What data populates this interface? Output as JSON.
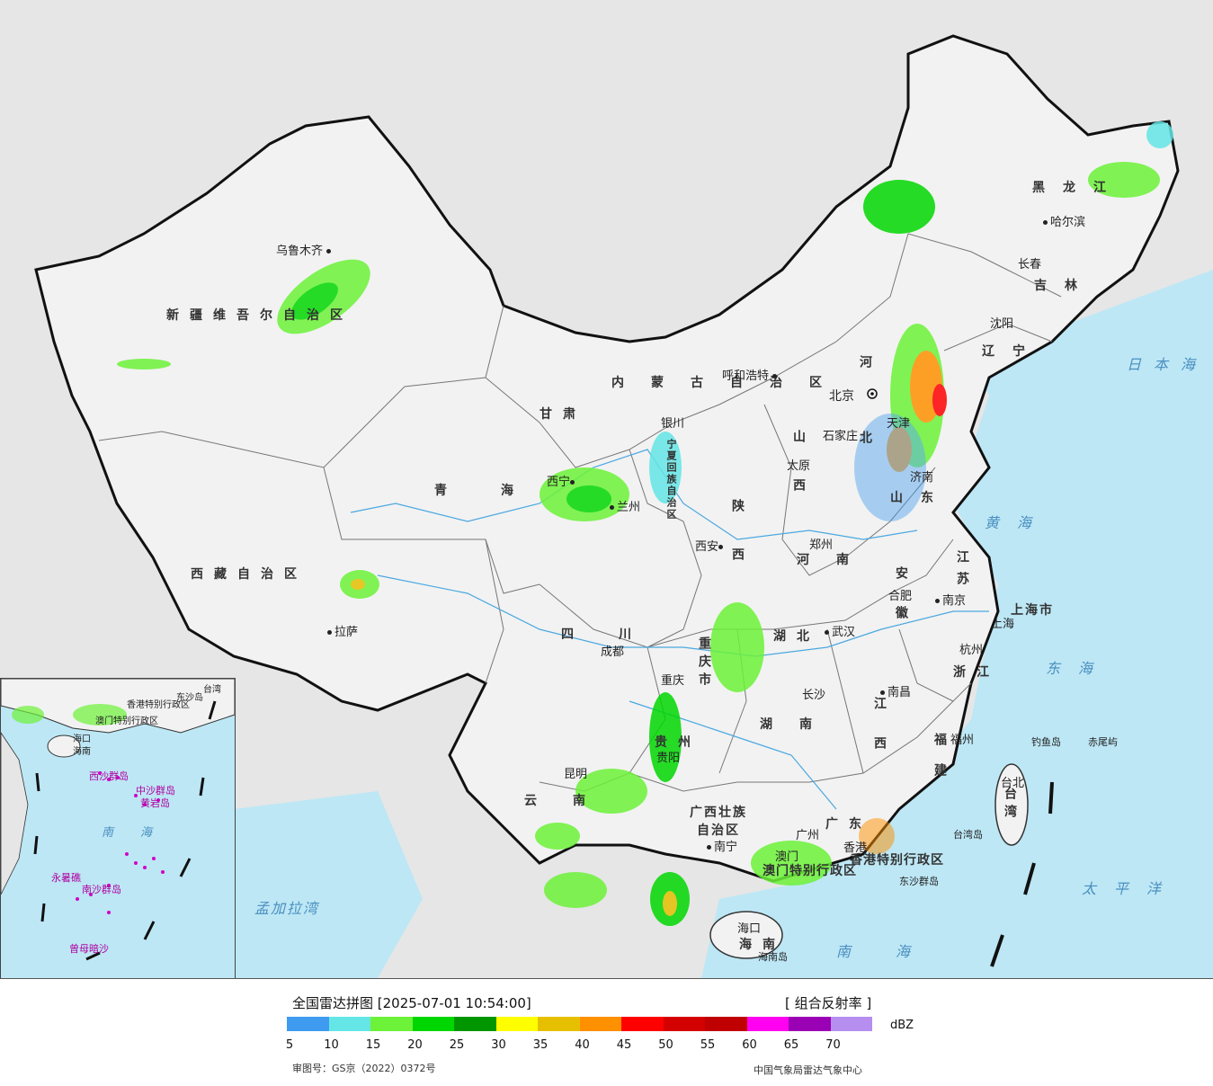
{
  "map": {
    "provinces": [
      {
        "id": "xinjiang",
        "label": "新疆维吾尔自治区"
      },
      {
        "id": "xizang",
        "label": "西藏自治区"
      },
      {
        "id": "qinghai",
        "label": "青海"
      },
      {
        "id": "gansu",
        "label": "甘肃"
      },
      {
        "id": "neimenggu",
        "label": "内蒙古自治区"
      },
      {
        "id": "ningxia",
        "label": "宁夏回族自治区"
      },
      {
        "id": "sichuan",
        "label": "四川"
      },
      {
        "id": "yunnan",
        "label": "云南"
      },
      {
        "id": "shaanxi",
        "label": "陕西"
      },
      {
        "id": "shanxi",
        "label": "山西"
      },
      {
        "id": "hebei",
        "label": "河北"
      },
      {
        "id": "henan",
        "label": "河南"
      },
      {
        "id": "hubei",
        "label": "湖北"
      },
      {
        "id": "hunan",
        "label": "湖南"
      },
      {
        "id": "guizhou",
        "label": "贵州"
      },
      {
        "id": "guangxi",
        "label": "广西壮族自治区"
      },
      {
        "id": "guangdong",
        "label": "广东"
      },
      {
        "id": "jiangxi",
        "label": "江西"
      },
      {
        "id": "fujian",
        "label": "福建"
      },
      {
        "id": "zhejiang",
        "label": "浙江"
      },
      {
        "id": "anhui",
        "label": "安徽"
      },
      {
        "id": "jiangsu",
        "label": "江苏"
      },
      {
        "id": "shandong",
        "label": "山东"
      },
      {
        "id": "liaoning",
        "label": "辽宁"
      },
      {
        "id": "jilin",
        "label": "吉林"
      },
      {
        "id": "heilongjiang",
        "label": "黑龙江"
      },
      {
        "id": "chongqing",
        "label": "重庆市"
      },
      {
        "id": "shanghai",
        "label": "上海市"
      },
      {
        "id": "hainan",
        "label": "海南"
      },
      {
        "id": "taiwan",
        "label": "台湾"
      },
      {
        "id": "hongkong",
        "label": "香港特别行政区"
      },
      {
        "id": "macau",
        "label": "澳门特别行政区"
      }
    ],
    "cities": [
      {
        "id": "urumqi",
        "label": "乌鲁木齐"
      },
      {
        "id": "lhasa",
        "label": "拉萨"
      },
      {
        "id": "xining",
        "label": "西宁"
      },
      {
        "id": "lanzhou",
        "label": "兰州"
      },
      {
        "id": "yinchuan",
        "label": "银川"
      },
      {
        "id": "hohhot",
        "label": "呼和浩特"
      },
      {
        "id": "beijing",
        "label": "北京"
      },
      {
        "id": "tianjin",
        "label": "天津"
      },
      {
        "id": "shijiazhuang",
        "label": "石家庄"
      },
      {
        "id": "taiyuan",
        "label": "太原"
      },
      {
        "id": "xian",
        "label": "西安"
      },
      {
        "id": "zhengzhou",
        "label": "郑州"
      },
      {
        "id": "jinan",
        "label": "济南"
      },
      {
        "id": "shenyang",
        "label": "沈阳"
      },
      {
        "id": "changchun",
        "label": "长春"
      },
      {
        "id": "harbin",
        "label": "哈尔滨"
      },
      {
        "id": "chengdu",
        "label": "成都"
      },
      {
        "id": "chongqing",
        "label": "重庆"
      },
      {
        "id": "wuhan",
        "label": "武汉"
      },
      {
        "id": "hefei",
        "label": "合肥"
      },
      {
        "id": "nanjing",
        "label": "南京"
      },
      {
        "id": "shanghai",
        "label": "上海"
      },
      {
        "id": "hangzhou",
        "label": "杭州"
      },
      {
        "id": "nanchang",
        "label": "南昌"
      },
      {
        "id": "changsha",
        "label": "长沙"
      },
      {
        "id": "guiyang",
        "label": "贵阳"
      },
      {
        "id": "kunming",
        "label": "昆明"
      },
      {
        "id": "nanning",
        "label": "南宁"
      },
      {
        "id": "guangzhou",
        "label": "广州"
      },
      {
        "id": "fuzhou",
        "label": "福州"
      },
      {
        "id": "taipei",
        "label": "台北"
      },
      {
        "id": "haikou",
        "label": "海口"
      },
      {
        "id": "hongkong",
        "label": "香港"
      },
      {
        "id": "macau",
        "label": "澳门"
      }
    ],
    "seas": [
      {
        "id": "riben-hai",
        "label": "日本海"
      },
      {
        "id": "huang-hai",
        "label": "黄海"
      },
      {
        "id": "dong-hai",
        "label": "东海"
      },
      {
        "id": "nan-hai",
        "label": "南海"
      },
      {
        "id": "taiping-yang",
        "label": "太平洋"
      },
      {
        "id": "mengjiala-wan",
        "label": "孟加拉湾"
      }
    ],
    "islands": [
      {
        "id": "diaoyu",
        "label": "钓鱼岛"
      },
      {
        "id": "chiwei",
        "label": "赤尾屿"
      },
      {
        "id": "taiwan-dao",
        "label": "台湾岛"
      },
      {
        "id": "hainan-dao",
        "label": "海南岛"
      },
      {
        "id": "dongsha",
        "label": "东沙群岛"
      }
    ],
    "inset": {
      "labels": [
        {
          "id": "nanhai",
          "label": "南海"
        },
        {
          "id": "xisha",
          "label": "西沙群岛"
        },
        {
          "id": "zhongsha",
          "label": "中沙群岛"
        },
        {
          "id": "huangyan",
          "label": "黄岩岛"
        },
        {
          "id": "nansha",
          "label": "南沙群岛"
        },
        {
          "id": "yongshu",
          "label": "永暑礁"
        },
        {
          "id": "zengmu",
          "label": "曾母暗沙"
        },
        {
          "id": "hk-sar",
          "label": "香港特别行政区"
        },
        {
          "id": "mo-sar",
          "label": "澳门特别行政区"
        },
        {
          "id": "dongsha-in",
          "label": "东沙岛"
        },
        {
          "id": "taiwan-in",
          "label": "台湾"
        },
        {
          "id": "haikou-in",
          "label": "海口"
        },
        {
          "id": "hainan-in",
          "label": "海南"
        }
      ]
    }
  },
  "legend": {
    "title": "全国雷达拼图 [2025-07-01 10:54:00]",
    "product": "[ 组合反射率 ]",
    "unit": "dBZ",
    "colors": [
      "#3f9bf0",
      "#64e6e6",
      "#6cf238",
      "#00d700",
      "#009600",
      "#ffff00",
      "#e6c000",
      "#ff9000",
      "#ff0000",
      "#d40000",
      "#c00000",
      "#ff00f0",
      "#9a00b4",
      "#b68ef0"
    ],
    "ticks": [
      "5",
      "10",
      "15",
      "20",
      "25",
      "30",
      "35",
      "40",
      "45",
      "50",
      "55",
      "60",
      "65",
      "70"
    ],
    "approval": "审图号：GS京（2022）0372号",
    "producer": "中国气象局雷达气象中心"
  }
}
